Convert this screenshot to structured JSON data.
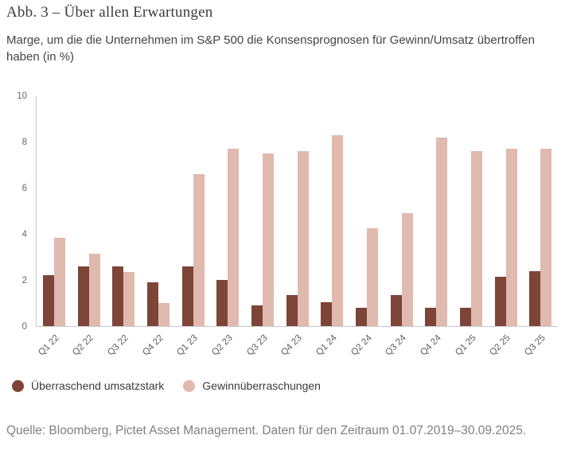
{
  "figure": {
    "title": "Abb. 3 – Über allen Erwartungen",
    "subtitle": "Marge, um die die Unternehmen im S&P 500 die Konsensprognosen für Gewinn/Umsatz übertroffen haben (in %)",
    "source": "Quelle: Bloomberg, Pictet Asset Management. Daten für den Zeitraum 01.07.2019–30.09.2025."
  },
  "chart_data": {
    "type": "bar",
    "title": "Abb. 3 – Über allen Erwartungen",
    "subtitle": "Marge, um die die Unternehmen im S&P 500 die Konsensprognosen für Gewinn/Umsatz übertroffen haben (in %)",
    "categories": [
      "Q1 22",
      "Q2 22",
      "Q3 22",
      "Q4 22",
      "Q1 23",
      "Q2 23",
      "Q3 23",
      "Q4 23",
      "Q1 24",
      "Q2 24",
      "Q3 24",
      "Q4 24",
      "Q1 25",
      "Q2 25",
      "Q3 25"
    ],
    "series": [
      {
        "name": "Überraschend umsatzstark",
        "color": "#7d4538",
        "values": [
          2.2,
          2.6,
          2.6,
          1.9,
          2.6,
          2.0,
          0.9,
          1.35,
          1.05,
          0.8,
          1.35,
          0.8,
          0.8,
          2.15,
          2.4
        ]
      },
      {
        "name": "Gewinnüberraschungen",
        "color": "#e0b9af",
        "values": [
          3.85,
          3.15,
          2.35,
          1.0,
          6.6,
          7.7,
          7.5,
          7.6,
          8.3,
          4.25,
          4.9,
          8.2,
          7.6,
          7.7,
          7.7
        ]
      }
    ],
    "xlabel": "",
    "ylabel": "",
    "ylim": [
      0,
      10
    ],
    "yticks": [
      0,
      2,
      4,
      6,
      8,
      10
    ],
    "grid": false,
    "legend_position": "bottom"
  },
  "colors": {
    "series_umsatz": "#7d4538",
    "series_gewinn": "#e0b9af",
    "axis_line": "#c8c8c8"
  }
}
